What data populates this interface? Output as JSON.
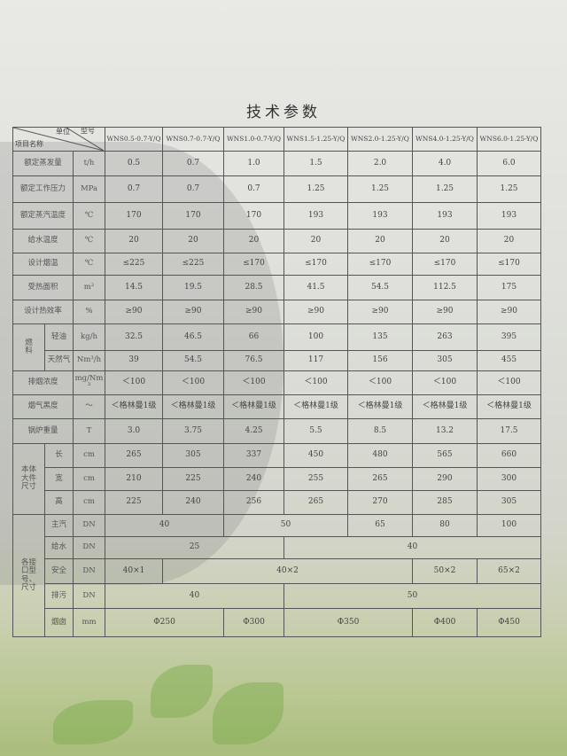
{
  "title": "技术参数",
  "header": {
    "unit": "单位",
    "model": "型号",
    "item": "项目名称",
    "models": [
      "WNS0.5-0.7-Y/Q",
      "WNS0.7-0.7-Y/Q",
      "WNS1.0-0.7-Y/Q",
      "WNS1.5-1.25-Y/Q",
      "WNS2.0-1.25-Y/Q",
      "WNS4.0-1.25-Y/Q",
      "WNS6.0-1.25-Y/Q"
    ]
  },
  "rows": [
    {
      "label": "额定蒸发量",
      "unit": "t/h",
      "cells": [
        {
          "v": "0.5"
        },
        {
          "v": "0.7"
        },
        {
          "v": "1.0"
        },
        {
          "v": "1.5"
        },
        {
          "v": "2.0"
        },
        {
          "v": "4.0"
        },
        {
          "v": "6.0"
        }
      ]
    },
    {
      "label": "额定工作压力",
      "unit": "MPa",
      "cells": [
        {
          "v": "0.7"
        },
        {
          "v": "0.7"
        },
        {
          "v": "0.7"
        },
        {
          "v": "1.25"
        },
        {
          "v": "1.25"
        },
        {
          "v": "1.25"
        },
        {
          "v": "1.25"
        }
      ]
    },
    {
      "label": "额定蒸汽温度",
      "unit": "℃",
      "cells": [
        {
          "v": "170"
        },
        {
          "v": "170"
        },
        {
          "v": "170"
        },
        {
          "v": "193"
        },
        {
          "v": "193"
        },
        {
          "v": "193"
        },
        {
          "v": "193"
        }
      ]
    },
    {
      "label": "给水温度",
      "unit": "℃",
      "cells": [
        {
          "v": "20"
        },
        {
          "v": "20"
        },
        {
          "v": "20"
        },
        {
          "v": "20"
        },
        {
          "v": "20"
        },
        {
          "v": "20"
        },
        {
          "v": "20"
        }
      ]
    },
    {
      "label": "设计烟温",
      "unit": "℃",
      "cells": [
        {
          "v": "≤225"
        },
        {
          "v": "≤225"
        },
        {
          "v": "≤170"
        },
        {
          "v": "≤170"
        },
        {
          "v": "≤170"
        },
        {
          "v": "≤170"
        },
        {
          "v": "≤170"
        }
      ]
    },
    {
      "label": "受热面积",
      "unit": "m²",
      "cells": [
        {
          "v": "14.5"
        },
        {
          "v": "19.5"
        },
        {
          "v": "28.5"
        },
        {
          "v": "41.5"
        },
        {
          "v": "54.5"
        },
        {
          "v": "112.5"
        },
        {
          "v": "175"
        }
      ]
    },
    {
      "label": "设计热效率",
      "unit": "%",
      "cells": [
        {
          "v": "≥90"
        },
        {
          "v": "≥90"
        },
        {
          "v": "≥90"
        },
        {
          "v": "≥90"
        },
        {
          "v": "≥90"
        },
        {
          "v": "≥90"
        },
        {
          "v": "≥90"
        }
      ]
    },
    {
      "group": [
        "燃",
        "料"
      ],
      "groupRows": 2,
      "label": "轻油",
      "unit": "kg/h",
      "cells": [
        {
          "v": "32.5"
        },
        {
          "v": "46.5"
        },
        {
          "v": "66"
        },
        {
          "v": "100"
        },
        {
          "v": "135"
        },
        {
          "v": "263"
        },
        {
          "v": "395"
        }
      ]
    },
    {
      "label": "天然气",
      "unit": "Nm³/h",
      "cells": [
        {
          "v": "39"
        },
        {
          "v": "54.5"
        },
        {
          "v": "76.5"
        },
        {
          "v": "117"
        },
        {
          "v": "156"
        },
        {
          "v": "305"
        },
        {
          "v": "455"
        }
      ]
    },
    {
      "label": "排烟浓度",
      "unit": "mg/Nm³",
      "cells": [
        {
          "v": "＜100"
        },
        {
          "v": "＜100"
        },
        {
          "v": "＜100"
        },
        {
          "v": "＜100"
        },
        {
          "v": "＜100"
        },
        {
          "v": "＜100"
        },
        {
          "v": "＜100"
        }
      ]
    },
    {
      "label": "烟气黑度",
      "unit": "～",
      "cells": [
        {
          "v": "＜格林曼1级"
        },
        {
          "v": "＜格林曼1级"
        },
        {
          "v": "＜格林曼1级"
        },
        {
          "v": "＜格林曼1级"
        },
        {
          "v": "＜格林曼1级"
        },
        {
          "v": "＜格林曼1级"
        },
        {
          "v": "＜格林曼1级"
        }
      ]
    },
    {
      "label": "锅炉重量",
      "unit": "T",
      "cells": [
        {
          "v": "3.0"
        },
        {
          "v": "3.75"
        },
        {
          "v": "4.25"
        },
        {
          "v": "5.5"
        },
        {
          "v": "8.5"
        },
        {
          "v": "13.2"
        },
        {
          "v": "17.5"
        }
      ]
    },
    {
      "group": [
        "本体",
        "大件",
        "尺寸"
      ],
      "groupRows": 3,
      "label": "长",
      "unit": "cm",
      "cells": [
        {
          "v": "265"
        },
        {
          "v": "305"
        },
        {
          "v": "337"
        },
        {
          "v": "450"
        },
        {
          "v": "480"
        },
        {
          "v": "565"
        },
        {
          "v": "660"
        }
      ]
    },
    {
      "label": "宽",
      "unit": "cm",
      "cells": [
        {
          "v": "210"
        },
        {
          "v": "225"
        },
        {
          "v": "240"
        },
        {
          "v": "255"
        },
        {
          "v": "265"
        },
        {
          "v": "290"
        },
        {
          "v": "300"
        }
      ]
    },
    {
      "label": "高",
      "unit": "cm",
      "cells": [
        {
          "v": "225"
        },
        {
          "v": "240"
        },
        {
          "v": "256"
        },
        {
          "v": "265"
        },
        {
          "v": "270"
        },
        {
          "v": "285"
        },
        {
          "v": "305"
        }
      ]
    },
    {
      "group": [
        "各接",
        "口型",
        "号、",
        "尺寸"
      ],
      "groupRows": 5,
      "label": "主汽",
      "unit": "DN",
      "cells": [
        {
          "v": "40",
          "span": 2
        },
        {
          "v": "50",
          "span": 2
        },
        {
          "v": "65"
        },
        {
          "v": "80"
        },
        {
          "v": "100"
        }
      ]
    },
    {
      "label": "给水",
      "unit": "DN",
      "cells": [
        {
          "v": "25",
          "span": 3
        },
        {
          "v": "40",
          "span": 4
        }
      ]
    },
    {
      "label": "安全",
      "unit": "DN",
      "cells": [
        {
          "v": "40×1"
        },
        {
          "v": "40×2",
          "span": 4
        },
        {
          "v": "50×2"
        },
        {
          "v": "65×2"
        }
      ]
    },
    {
      "label": "排污",
      "unit": "DN",
      "cells": [
        {
          "v": "40",
          "span": 3
        },
        {
          "v": "50",
          "span": 4
        }
      ]
    },
    {
      "label": "烟囱",
      "unit": "mm",
      "cells": [
        {
          "v": "Φ250",
          "span": 2
        },
        {
          "v": "Φ300"
        },
        {
          "v": "Φ350",
          "span": 2
        },
        {
          "v": "Φ400"
        },
        {
          "v": "Φ450"
        }
      ]
    }
  ]
}
